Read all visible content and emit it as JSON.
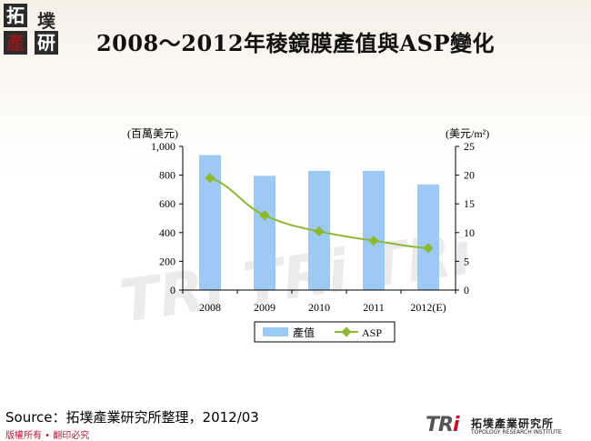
{
  "logo": {
    "chars": [
      "拓",
      "墣",
      "產",
      "研"
    ]
  },
  "title": "2008～2012年稜鏡膜產值與ASP變化",
  "source": "Source：拓墣產業研究所整理，2012/03",
  "copyright": "版權所有 • 翻印必究",
  "watermark": "TRi TRi TRi",
  "brand": {
    "mark_a": "TR",
    "mark_b": "i",
    "cn": "拓墣產業研究所",
    "en": "TOPOLOGY RESEARCH INSTITUTE"
  },
  "colors": {
    "bar": "#9ccaf4",
    "line": "#8db92f",
    "title": "#111111",
    "copyright": "#c8102e"
  },
  "chart_data": {
    "type": "bar",
    "categories": [
      "2008",
      "2009",
      "2010",
      "2011",
      "2012(E)"
    ],
    "series": [
      {
        "name": "產值",
        "type": "bar",
        "axis": "left",
        "values": [
          940,
          795,
          830,
          830,
          735
        ]
      },
      {
        "name": "ASP",
        "type": "line",
        "axis": "right",
        "values": [
          19.5,
          13,
          10.2,
          8.6,
          7.3
        ]
      }
    ],
    "y_left": {
      "label": "(百萬美元)",
      "ylim": [
        0,
        1000
      ],
      "ticks": [
        0,
        200,
        400,
        600,
        800,
        1000
      ],
      "tick_labels": [
        "0",
        "200",
        "400",
        "600",
        "800",
        "1,000"
      ]
    },
    "y_right": {
      "label": "(美元/m²)",
      "ylim": [
        0,
        25
      ],
      "ticks": [
        0,
        5,
        10,
        15,
        20,
        25
      ]
    },
    "grid": false,
    "legend_position": "bottom"
  }
}
